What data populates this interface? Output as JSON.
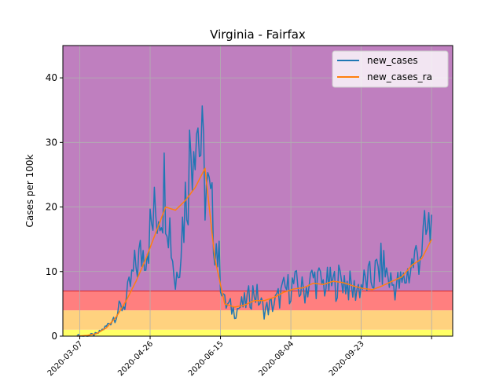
{
  "chart_data": {
    "type": "line",
    "title": "Virginia - Fairfax",
    "xlabel": "",
    "ylabel": "Cases per 100k",
    "ylim": [
      0,
      45
    ],
    "xlim": [
      "2020-02-24",
      "2020-11-27"
    ],
    "grid": true,
    "legend_position": "top-right",
    "x_ticks": [
      "2020-03-07",
      "2020-04-26",
      "2020-06-15",
      "2020-08-04",
      "2020-09-23",
      "2020-11-12"
    ],
    "x_tick_labels": [
      "2020-03-07",
      "2020-04-26",
      "2020-06-15",
      "2020-08-04",
      "2020-09-23",
      ""
    ],
    "y_ticks": [
      0,
      10,
      20,
      30,
      40
    ],
    "risk_bands": [
      {
        "from": 0,
        "to": 1,
        "color": "#ffff66"
      },
      {
        "from": 1,
        "to": 4,
        "color": "#ffd27f"
      },
      {
        "from": 4,
        "to": 7,
        "color": "#ff7f7f"
      },
      {
        "from": 7,
        "to": 45,
        "color": "#bf7fbf"
      }
    ],
    "threshold_line": {
      "y": 7,
      "color": "#d62728"
    },
    "x": [
      "2020-03-05",
      "2020-03-12",
      "2020-03-19",
      "2020-03-26",
      "2020-04-02",
      "2020-04-09",
      "2020-04-16",
      "2020-04-23",
      "2020-04-30",
      "2020-05-07",
      "2020-05-14",
      "2020-05-21",
      "2020-05-28",
      "2020-06-04",
      "2020-06-11",
      "2020-06-18",
      "2020-06-25",
      "2020-07-02",
      "2020-07-09",
      "2020-07-16",
      "2020-07-23",
      "2020-07-30",
      "2020-08-06",
      "2020-08-13",
      "2020-08-20",
      "2020-08-27",
      "2020-09-03",
      "2020-09-10",
      "2020-09-17",
      "2020-09-24",
      "2020-10-01",
      "2020-10-08",
      "2020-10-15",
      "2020-10-22",
      "2020-10-29",
      "2020-11-05",
      "2020-11-12"
    ],
    "series": [
      {
        "name": "new_cases",
        "color": "#1f77b4",
        "values": [
          0,
          0,
          0.3,
          1.5,
          3.5,
          5.5,
          11,
          14,
          19,
          24,
          8,
          21,
          36,
          24,
          16,
          5,
          4,
          5,
          7,
          4,
          5,
          7,
          8,
          7,
          9,
          8,
          8,
          9,
          7,
          8,
          9,
          11,
          8,
          8,
          11,
          14,
          17
        ]
      },
      {
        "name": "new_cases_ra",
        "color": "#ff7f0e",
        "values": [
          0,
          0.1,
          0.4,
          1.3,
          3,
          5.5,
          8.5,
          12,
          16,
          20,
          19.5,
          21,
          23,
          26,
          12,
          5,
          4.5,
          4.8,
          5.5,
          5.5,
          6,
          6.8,
          7.3,
          7.5,
          8.2,
          8,
          8.5,
          8.3,
          7.8,
          7.4,
          7.2,
          7.8,
          8.5,
          9.2,
          11,
          12,
          15
        ]
      }
    ]
  }
}
